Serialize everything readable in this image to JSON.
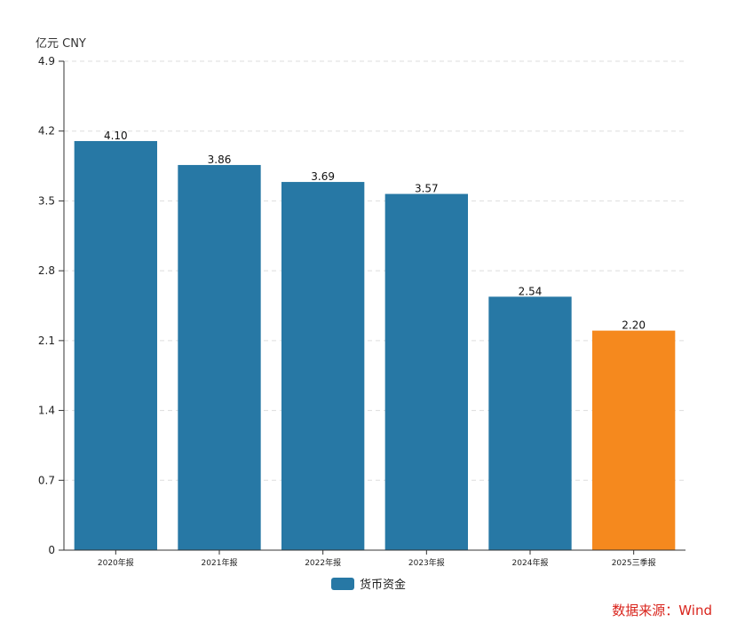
{
  "unit_label": "亿元  CNY",
  "source": "数据来源：Wind",
  "colors": {
    "bar": "#2778a5",
    "highlight": "#f5891e",
    "source_text": "#d9241c",
    "grid": "#dddddd",
    "axis": "#333333"
  },
  "chart_data": {
    "type": "bar",
    "categories": [
      "2020年报",
      "2021年报",
      "2022年报",
      "2023年报",
      "2024年报",
      "2025三季报"
    ],
    "series": [
      {
        "name": "货币资金",
        "values": [
          4.1,
          3.86,
          3.69,
          3.57,
          2.54,
          2.2
        ],
        "value_labels": [
          "4.10",
          "3.86",
          "3.69",
          "3.57",
          "2.54",
          "2.20"
        ]
      }
    ],
    "highlight_index": 5,
    "ylim": [
      0,
      4.9
    ],
    "yticks": [
      0,
      0.7,
      1.4,
      2.1,
      2.8,
      3.5,
      4.2,
      4.9
    ],
    "ytick_labels": [
      "0",
      "0.7",
      "1.4",
      "2.1",
      "2.8",
      "3.5",
      "4.2",
      "4.9"
    ],
    "ylabel": "亿元  CNY",
    "xlabel": "",
    "grid": true,
    "legend": "bottom-center"
  }
}
